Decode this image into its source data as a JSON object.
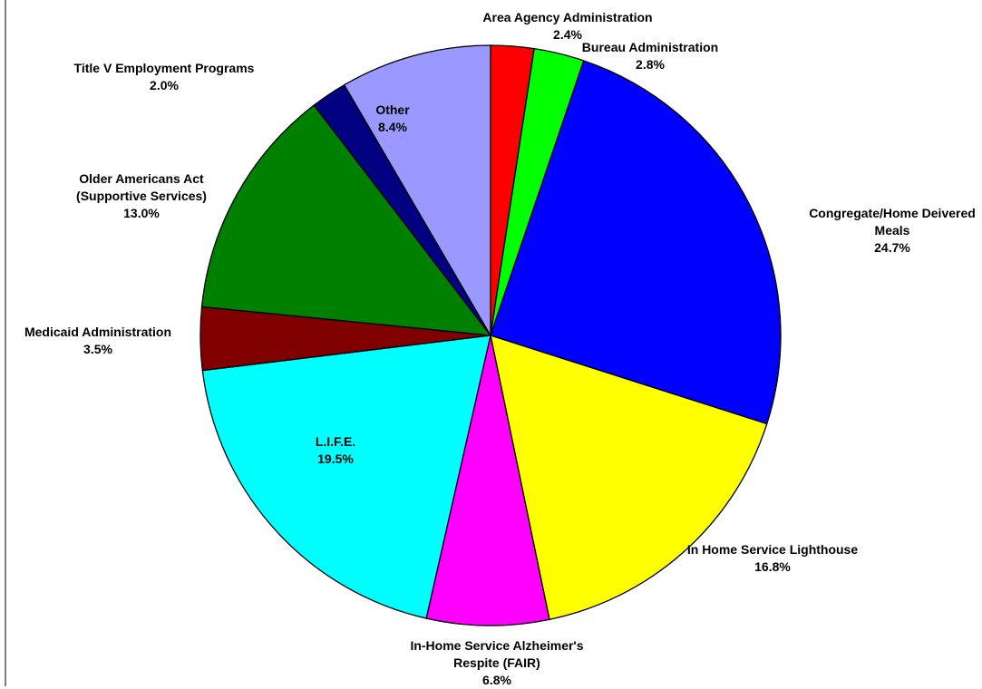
{
  "chart_data": {
    "type": "pie",
    "categories": [
      "Area Agency Administration",
      "Bureau Administration",
      "Congregate/Home Deivered\nMeals",
      "In Home Service Lighthouse",
      "In-Home Service Alzheimer's\nRespite (FAIR)",
      "L.I.F.E.",
      "Medicaid Administration",
      "Older Americans Act\n(Supportive Services)",
      "Title V Employment Programs",
      "Other"
    ],
    "values": [
      2.4,
      2.8,
      24.7,
      16.8,
      6.8,
      19.5,
      3.5,
      13.0,
      2.0,
      8.4
    ],
    "value_labels": [
      "2.4%",
      "2.8%",
      "24.7%",
      "16.8%",
      "6.8%",
      "19.5%",
      "3.5%",
      "13.0%",
      "2.0%",
      "8.4%"
    ],
    "colors": [
      "#ff0000",
      "#00ff00",
      "#0000ff",
      "#ffff00",
      "#ff00ff",
      "#00ffff",
      "#800000",
      "#008000",
      "#000080",
      "#9999ff"
    ]
  }
}
